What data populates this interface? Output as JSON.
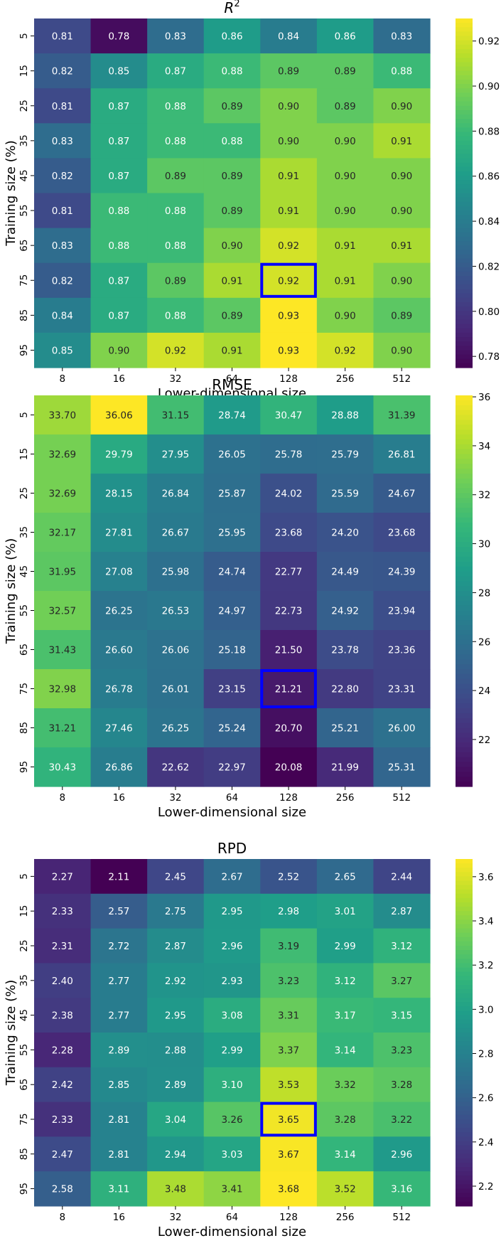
{
  "colorbar_colors": [
    "#440154",
    "#482878",
    "#3e4989",
    "#31688e",
    "#26828e",
    "#1f9e89",
    "#35b779",
    "#6ece58",
    "#b5de2b",
    "#fde725"
  ],
  "highlight_color": "#0000ff",
  "chart_data": [
    {
      "type": "heatmap",
      "title": "R",
      "title_superscript": "2",
      "xlabel": "Lower-dimensional size",
      "ylabel": "Training size (%)",
      "x_categories": [
        "8",
        "16",
        "32",
        "64",
        "128",
        "256",
        "512"
      ],
      "y_categories": [
        "5",
        "15",
        "25",
        "35",
        "45",
        "55",
        "65",
        "75",
        "85",
        "95"
      ],
      "values": [
        [
          0.81,
          0.78,
          0.83,
          0.86,
          0.84,
          0.86,
          0.83
        ],
        [
          0.82,
          0.85,
          0.87,
          0.88,
          0.89,
          0.89,
          0.88
        ],
        [
          0.81,
          0.87,
          0.88,
          0.89,
          0.9,
          0.89,
          0.9
        ],
        [
          0.83,
          0.87,
          0.88,
          0.88,
          0.9,
          0.9,
          0.91
        ],
        [
          0.82,
          0.87,
          0.89,
          0.89,
          0.91,
          0.9,
          0.9
        ],
        [
          0.81,
          0.88,
          0.88,
          0.89,
          0.91,
          0.9,
          0.9
        ],
        [
          0.83,
          0.88,
          0.88,
          0.9,
          0.92,
          0.91,
          0.91
        ],
        [
          0.82,
          0.87,
          0.89,
          0.91,
          0.92,
          0.91,
          0.9
        ],
        [
          0.84,
          0.87,
          0.88,
          0.89,
          0.93,
          0.9,
          0.89
        ],
        [
          0.85,
          0.9,
          0.92,
          0.91,
          0.93,
          0.92,
          0.9
        ]
      ],
      "cell_labels": [
        [
          "0.81",
          "0.78",
          "0.83",
          "0.86",
          "0.84",
          "0.86",
          "0.83"
        ],
        [
          "0.82",
          "0.85",
          "0.87",
          "0.88",
          "0.89",
          "0.89",
          "0.88"
        ],
        [
          "0.81",
          "0.87",
          "0.88",
          "0.89",
          "0.90",
          "0.89",
          "0.90"
        ],
        [
          "0.83",
          "0.87",
          "0.88",
          "0.88",
          "0.90",
          "0.90",
          "0.91"
        ],
        [
          "0.82",
          "0.87",
          "0.89",
          "0.89",
          "0.91",
          "0.90",
          "0.90"
        ],
        [
          "0.81",
          "0.88",
          "0.88",
          "0.89",
          "0.91",
          "0.90",
          "0.90"
        ],
        [
          "0.83",
          "0.88",
          "0.88",
          "0.90",
          "0.92",
          "0.91",
          "0.91"
        ],
        [
          "0.82",
          "0.87",
          "0.89",
          "0.91",
          "0.92",
          "0.91",
          "0.90"
        ],
        [
          "0.84",
          "0.87",
          "0.88",
          "0.89",
          "0.93",
          "0.90",
          "0.89"
        ],
        [
          "0.85",
          "0.90",
          "0.92",
          "0.91",
          "0.93",
          "0.92",
          "0.90"
        ]
      ],
      "vmin": 0.775,
      "vmax": 0.93,
      "colorbar_ticks": [
        "0.78",
        "0.80",
        "0.82",
        "0.84",
        "0.86",
        "0.88",
        "0.90",
        "0.92"
      ],
      "highlight_cell": {
        "row": "75",
        "col": "128"
      }
    },
    {
      "type": "heatmap",
      "title": "RMSE",
      "xlabel": "Lower-dimensional size",
      "ylabel": "Training size (%)",
      "x_categories": [
        "8",
        "16",
        "32",
        "64",
        "128",
        "256",
        "512"
      ],
      "y_categories": [
        "5",
        "15",
        "25",
        "35",
        "45",
        "55",
        "65",
        "75",
        "85",
        "95"
      ],
      "values": [
        [
          33.7,
          36.06,
          31.15,
          28.74,
          30.47,
          28.88,
          31.39
        ],
        [
          32.69,
          29.79,
          27.95,
          26.05,
          25.78,
          25.79,
          26.81
        ],
        [
          32.69,
          28.15,
          26.84,
          25.87,
          24.02,
          25.59,
          24.67
        ],
        [
          32.17,
          27.81,
          26.67,
          25.95,
          23.68,
          24.2,
          23.68
        ],
        [
          31.95,
          27.08,
          25.98,
          24.74,
          22.77,
          24.49,
          24.39
        ],
        [
          32.57,
          26.25,
          26.53,
          24.97,
          22.73,
          24.92,
          23.94
        ],
        [
          31.43,
          26.6,
          26.06,
          25.18,
          21.5,
          23.78,
          23.36
        ],
        [
          32.98,
          26.78,
          26.01,
          23.15,
          21.21,
          22.8,
          23.31
        ],
        [
          31.21,
          27.46,
          26.25,
          25.24,
          20.7,
          25.21,
          26.0
        ],
        [
          30.43,
          26.86,
          22.62,
          22.97,
          20.08,
          21.99,
          25.31
        ]
      ],
      "cell_labels": [
        [
          "33.70",
          "36.06",
          "31.15",
          "28.74",
          "30.47",
          "28.88",
          "31.39"
        ],
        [
          "32.69",
          "29.79",
          "27.95",
          "26.05",
          "25.78",
          "25.79",
          "26.81"
        ],
        [
          "32.69",
          "28.15",
          "26.84",
          "25.87",
          "24.02",
          "25.59",
          "24.67"
        ],
        [
          "32.17",
          "27.81",
          "26.67",
          "25.95",
          "23.68",
          "24.20",
          "23.68"
        ],
        [
          "31.95",
          "27.08",
          "25.98",
          "24.74",
          "22.77",
          "24.49",
          "24.39"
        ],
        [
          "32.57",
          "26.25",
          "26.53",
          "24.97",
          "22.73",
          "24.92",
          "23.94"
        ],
        [
          "31.43",
          "26.60",
          "26.06",
          "25.18",
          "21.50",
          "23.78",
          "23.36"
        ],
        [
          "32.98",
          "26.78",
          "26.01",
          "23.15",
          "21.21",
          "22.80",
          "23.31"
        ],
        [
          "31.21",
          "27.46",
          "26.25",
          "25.24",
          "20.70",
          "25.21",
          "26.00"
        ],
        [
          "30.43",
          "26.86",
          "22.62",
          "22.97",
          "20.08",
          "21.99",
          "25.31"
        ]
      ],
      "vmin": 20.08,
      "vmax": 36.06,
      "colorbar_ticks": [
        "22",
        "24",
        "26",
        "28",
        "30",
        "32",
        "34",
        "36"
      ],
      "highlight_cell": {
        "row": "75",
        "col": "128"
      }
    },
    {
      "type": "heatmap",
      "title": "RPD",
      "xlabel": "Lower-dimensional size",
      "ylabel": "Training size (%)",
      "x_categories": [
        "8",
        "16",
        "32",
        "64",
        "128",
        "256",
        "512"
      ],
      "y_categories": [
        "5",
        "15",
        "25",
        "35",
        "45",
        "55",
        "65",
        "75",
        "85",
        "95"
      ],
      "values": [
        [
          2.27,
          2.11,
          2.45,
          2.67,
          2.52,
          2.65,
          2.44
        ],
        [
          2.33,
          2.57,
          2.75,
          2.95,
          2.98,
          3.01,
          2.87
        ],
        [
          2.31,
          2.72,
          2.87,
          2.96,
          3.19,
          2.99,
          3.12
        ],
        [
          2.4,
          2.77,
          2.92,
          2.93,
          3.23,
          3.12,
          3.27
        ],
        [
          2.38,
          2.77,
          2.95,
          3.08,
          3.31,
          3.17,
          3.15
        ],
        [
          2.28,
          2.89,
          2.88,
          2.99,
          3.37,
          3.14,
          3.23
        ],
        [
          2.42,
          2.85,
          2.89,
          3.1,
          3.53,
          3.32,
          3.28
        ],
        [
          2.33,
          2.81,
          3.04,
          3.26,
          3.65,
          3.28,
          3.22
        ],
        [
          2.47,
          2.81,
          2.94,
          3.03,
          3.67,
          3.14,
          2.96
        ],
        [
          2.58,
          3.11,
          3.48,
          3.41,
          3.68,
          3.52,
          3.16
        ]
      ],
      "cell_labels": [
        [
          "2.27",
          "2.11",
          "2.45",
          "2.67",
          "2.52",
          "2.65",
          "2.44"
        ],
        [
          "2.33",
          "2.57",
          "2.75",
          "2.95",
          "2.98",
          "3.01",
          "2.87"
        ],
        [
          "2.31",
          "2.72",
          "2.87",
          "2.96",
          "3.19",
          "2.99",
          "3.12"
        ],
        [
          "2.40",
          "2.77",
          "2.92",
          "2.93",
          "3.23",
          "3.12",
          "3.27"
        ],
        [
          "2.38",
          "2.77",
          "2.95",
          "3.08",
          "3.31",
          "3.17",
          "3.15"
        ],
        [
          "2.28",
          "2.89",
          "2.88",
          "2.99",
          "3.37",
          "3.14",
          "3.23"
        ],
        [
          "2.42",
          "2.85",
          "2.89",
          "3.10",
          "3.53",
          "3.32",
          "3.28"
        ],
        [
          "2.33",
          "2.81",
          "3.04",
          "3.26",
          "3.65",
          "3.28",
          "3.22"
        ],
        [
          "2.47",
          "2.81",
          "2.94",
          "3.03",
          "3.67",
          "3.14",
          "2.96"
        ],
        [
          "2.58",
          "3.11",
          "3.48",
          "3.41",
          "3.68",
          "3.52",
          "3.16"
        ]
      ],
      "vmin": 2.11,
      "vmax": 3.68,
      "colorbar_ticks": [
        "2.2",
        "2.4",
        "2.6",
        "2.8",
        "3.0",
        "3.2",
        "3.4",
        "3.6"
      ],
      "highlight_cell": {
        "row": "75",
        "col": "128"
      }
    }
  ]
}
